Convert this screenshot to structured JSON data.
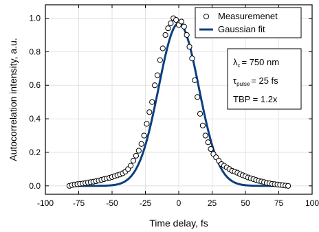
{
  "chart_data": {
    "type": "scatter",
    "title": "",
    "xlabel": "Time delay, fs",
    "ylabel": "Autocorrelation intensity, a.u.",
    "xlim": [
      -100,
      100
    ],
    "ylim": [
      -0.05,
      1.08
    ],
    "xticks": [
      "-100",
      "-75",
      "-50",
      "-25",
      "0",
      "25",
      "50",
      "75",
      "100"
    ],
    "yticks": [
      "0.0",
      "0.2",
      "0.4",
      "0.6",
      "0.8",
      "1.0"
    ],
    "grid": true,
    "legend_position": "top-right",
    "series": [
      {
        "name": "Measuremenet",
        "kind": "scatter",
        "marker": "open-circle",
        "color": "#000000",
        "x": [
          -82,
          -80,
          -78,
          -76,
          -74,
          -72,
          -70,
          -68,
          -66,
          -64,
          -62,
          -60,
          -58,
          -56,
          -54,
          -52,
          -50,
          -48,
          -46,
          -44,
          -42,
          -40,
          -38,
          -36,
          -34,
          -32,
          -30,
          -28,
          -26,
          -24,
          -22,
          -20,
          -18,
          -16,
          -14,
          -12,
          -10,
          -8,
          -6,
          -4,
          -2,
          0,
          2,
          4,
          6,
          8,
          10,
          12,
          14,
          16,
          18,
          20,
          22,
          24,
          26,
          28,
          30,
          32,
          34,
          36,
          38,
          40,
          42,
          44,
          46,
          48,
          50,
          52,
          54,
          56,
          58,
          60,
          62,
          64,
          66,
          68,
          70,
          72,
          74,
          76,
          78,
          80,
          82
        ],
        "y": [
          0.0,
          0.005,
          0.008,
          0.01,
          0.012,
          0.014,
          0.017,
          0.02,
          0.022,
          0.025,
          0.028,
          0.032,
          0.036,
          0.04,
          0.044,
          0.048,
          0.053,
          0.058,
          0.063,
          0.068,
          0.075,
          0.085,
          0.1,
          0.12,
          0.15,
          0.18,
          0.21,
          0.25,
          0.3,
          0.37,
          0.44,
          0.5,
          0.6,
          0.66,
          0.75,
          0.82,
          0.9,
          0.94,
          0.97,
          1.0,
          0.99,
          0.96,
          0.98,
          0.95,
          0.9,
          0.83,
          0.76,
          0.63,
          0.53,
          0.43,
          0.36,
          0.3,
          0.26,
          0.22,
          0.19,
          0.17,
          0.15,
          0.13,
          0.12,
          0.11,
          0.1,
          0.09,
          0.085,
          0.078,
          0.07,
          0.063,
          0.057,
          0.05,
          0.045,
          0.04,
          0.035,
          0.03,
          0.026,
          0.022,
          0.018,
          0.015,
          0.012,
          0.01,
          0.008,
          0.006,
          0.004,
          0.002,
          0.0
        ]
      },
      {
        "name": "Gaussian fit",
        "kind": "line",
        "color": "#0a3f7f",
        "center": 0,
        "amplitude": 0.97,
        "fwhm": 35.4,
        "x_range": [
          -82,
          82
        ]
      }
    ],
    "annotations": {
      "lambda_symbol": "λ",
      "lambda_sub": "c",
      "lambda_value": "= 750 nm",
      "tau_symbol": "τ",
      "tau_sub": "pulse",
      "tau_value": "= 25 fs",
      "tbp": "TBP = 1.2x"
    }
  }
}
